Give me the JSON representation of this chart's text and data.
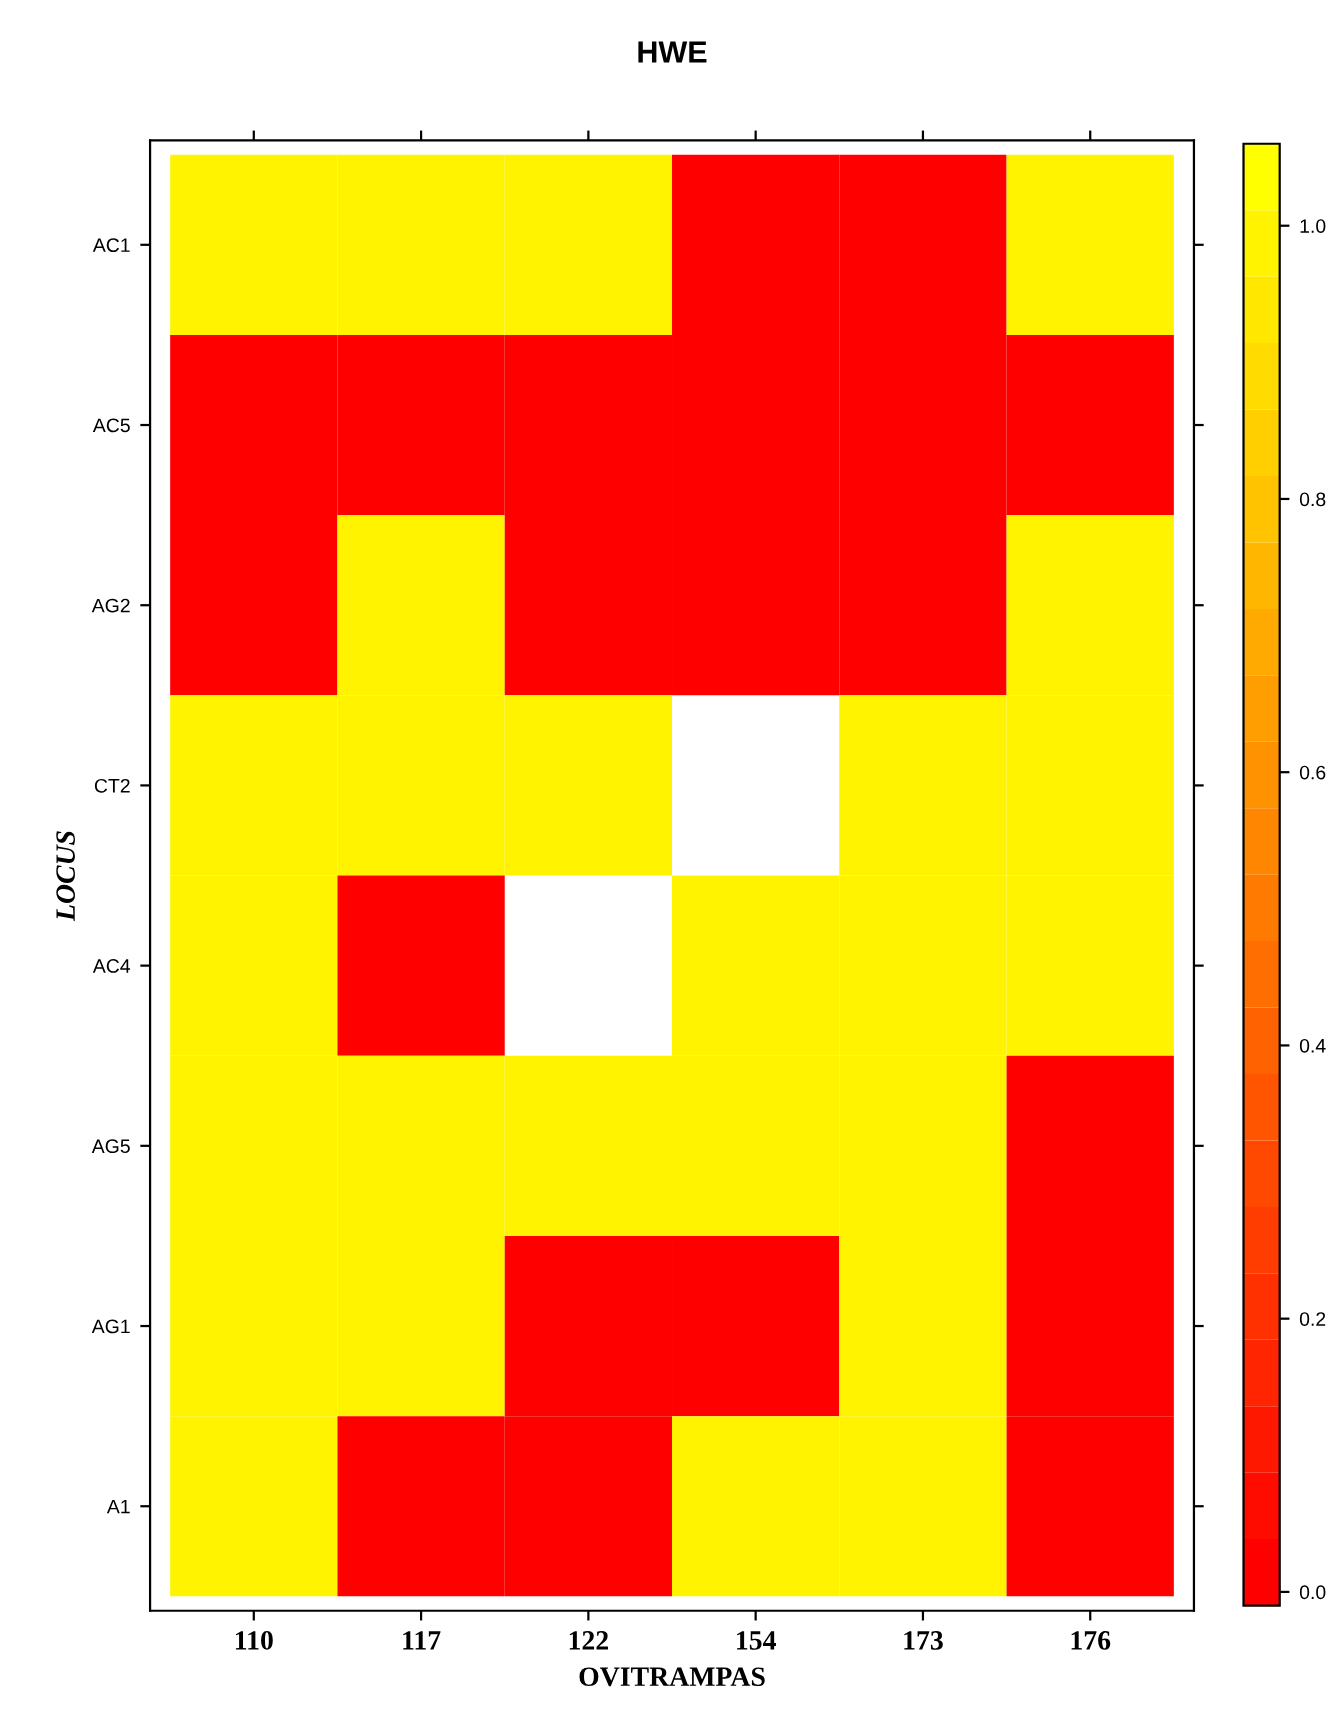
{
  "chart_data": {
    "type": "heatmap",
    "title": "HWE",
    "xlabel": "OVITRAMPAS",
    "ylabel": "LOCUS",
    "categories": [
      "110",
      "117",
      "122",
      "154",
      "173",
      "176"
    ],
    "y_categories": [
      "AC1",
      "AC5",
      "AG2",
      "CT2",
      "AC4",
      "AG5",
      "AG1",
      "A1"
    ],
    "cells": [
      [
        1,
        1,
        1,
        0,
        0,
        1
      ],
      [
        0,
        0,
        0,
        0,
        0,
        0
      ],
      [
        0,
        1,
        0,
        0,
        0,
        1
      ],
      [
        1,
        1,
        1,
        null,
        1,
        1
      ],
      [
        1,
        0,
        null,
        1,
        1,
        1
      ],
      [
        1,
        1,
        1,
        1,
        1,
        0
      ],
      [
        1,
        1,
        0,
        0,
        1,
        0
      ],
      [
        1,
        0,
        0,
        1,
        1,
        0
      ]
    ],
    "clim": [
      -0.01,
      1.06
    ],
    "cticks": [
      {
        "value": 0,
        "label": "0.0"
      },
      {
        "value": 0.2,
        "label": "0.2"
      },
      {
        "value": 0.4,
        "label": "0.4"
      },
      {
        "value": 0.6,
        "label": "0.6"
      },
      {
        "value": 0.8,
        "label": "0.8"
      },
      {
        "value": 1,
        "label": "1.0"
      }
    ]
  }
}
